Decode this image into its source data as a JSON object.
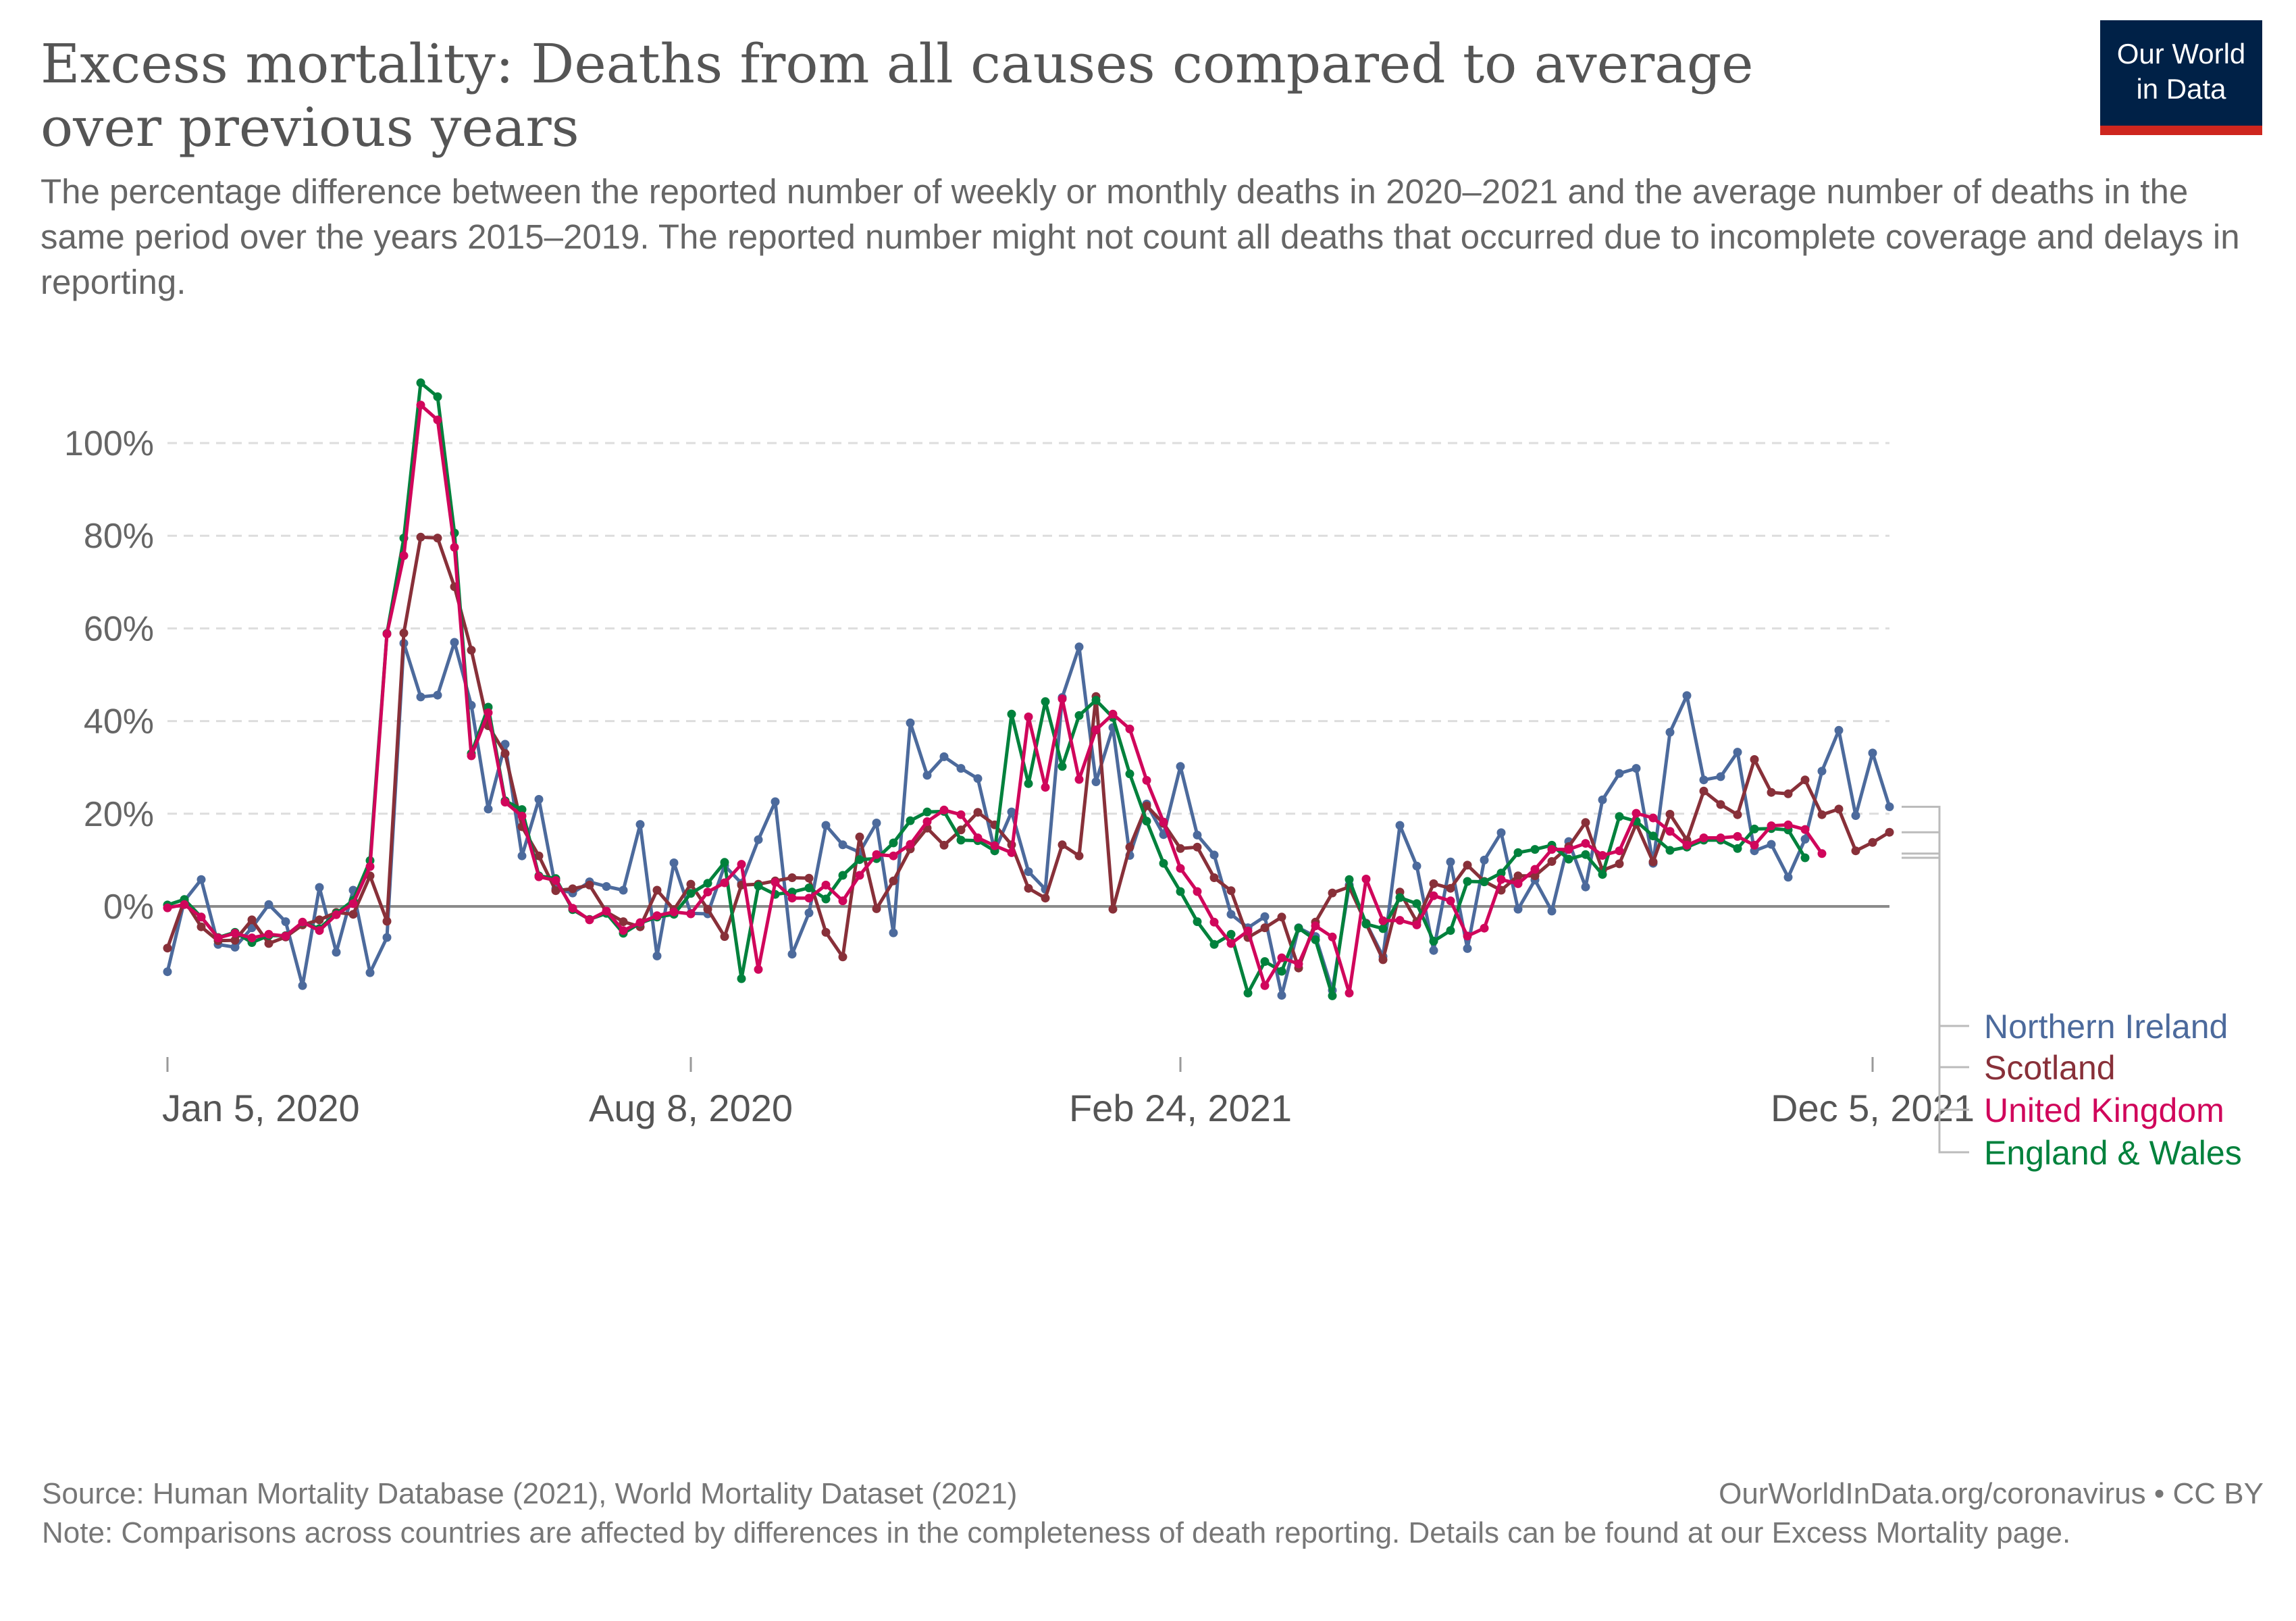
{
  "title": "Excess mortality: Deaths from all causes compared to average over previous years",
  "subtitle": "The percentage difference between the reported number of weekly or monthly deaths in 2020–2021 and the average number of deaths in the same period over the years 2015–2019. The reported number might not count all deaths that occurred due to incomplete coverage and delays in reporting.",
  "logo": {
    "line1": "Our World",
    "line2": "in Data",
    "bg_color": "#002147",
    "accent_color": "#ce261e"
  },
  "footer": {
    "source": "Source: Human Mortality Database (2021), World Mortality Dataset (2021)",
    "license": "OurWorldInData.org/coronavirus • CC BY",
    "note": "Note: Comparisons across countries are affected by differences in the completeness of death reporting. Details can be found at our Excess Mortality page."
  },
  "chart_data": {
    "type": "line",
    "title": "Excess mortality: Deaths from all causes compared to average over previous years",
    "xlabel": "",
    "ylabel": "",
    "x_start": "Jan 5, 2020",
    "x_interval": "weekly",
    "ylim": [
      -20,
      110
    ],
    "y_ticks": [
      0,
      20,
      40,
      60,
      80,
      100
    ],
    "y_tick_labels": [
      "0%",
      "20%",
      "40%",
      "60%",
      "80%",
      "100%"
    ],
    "x_ticks": [
      {
        "index": 0,
        "label": "Jan 5, 2020"
      },
      {
        "index": 31,
        "label": "Aug 8, 2020"
      },
      {
        "index": 60,
        "label": "Feb 24, 2021"
      },
      {
        "index": 101,
        "label": "Dec 5, 2021"
      }
    ],
    "grid": true,
    "legend": "right, labels at line ends",
    "series": [
      {
        "name": "Northern Ireland",
        "color": "#4c6a9c",
        "values": [
          -14.1,
          1.2,
          5.8,
          -8.2,
          -8.8,
          -4.6,
          0.4,
          -3.3,
          -17.1,
          4.1,
          -9.9,
          3.5,
          -14.3,
          -6.7,
          56.8,
          45.2,
          45.6,
          57,
          43.4,
          21,
          35,
          10.9,
          23.1,
          3.8,
          2.9,
          5.3,
          4.3,
          3.5,
          17.7,
          -10.7,
          9.4,
          -1.5,
          -1.6,
          8.8,
          5,
          14.4,
          22.6,
          -10.3,
          -1.4,
          17.5,
          13.3,
          11.7,
          18,
          -5.7,
          39.6,
          28.3,
          32.3,
          29.8,
          27.6,
          12,
          20.4,
          7.5,
          3.7,
          45.1,
          56,
          26.9,
          38.6,
          11,
          22.1,
          15.5,
          30.2,
          15.4,
          11.1,
          -1.7,
          -4.6,
          -2.2,
          -19.2,
          -4.6,
          -6.5,
          -18.1,
          4.6,
          -3.6,
          -10.8,
          17.5,
          8.7,
          -9.5,
          9.6,
          -9.1,
          10,
          15.9,
          -0.6,
          5.7,
          -1,
          14,
          4.2,
          23,
          28.7,
          29.8,
          9.3,
          37.6,
          45.5,
          27.3,
          28,
          33.3,
          12,
          13.4,
          6.3,
          14.5,
          29.2,
          38,
          19.6,
          33.1,
          21.5
        ]
      },
      {
        "name": "Scotland",
        "color": "#883039",
        "values": [
          -9,
          1.3,
          -4.4,
          -7.4,
          -7.3,
          -2.9,
          -8,
          -6.6,
          -4,
          -2.9,
          -1.3,
          -1.7,
          6.6,
          -3.2,
          59,
          79.7,
          79.5,
          69,
          55.3,
          39,
          33,
          17.2,
          10.9,
          3.4,
          3.8,
          4.6,
          -1.2,
          -3.3,
          -4.4,
          3.5,
          -0.7,
          4.8,
          -0.6,
          -6.5,
          4.6,
          4.8,
          5.5,
          6.2,
          6.1,
          -5.6,
          -10.9,
          15,
          -0.5,
          5.5,
          12.4,
          16.9,
          13.2,
          16.5,
          20.3,
          17.6,
          13.3,
          3.9,
          1.8,
          13.3,
          10.9,
          45.3,
          -0.6,
          12.8,
          21.7,
          17.9,
          12.5,
          12.8,
          6.2,
          3.4,
          -6.7,
          -4.6,
          -2.3,
          -13.3,
          -3.4,
          2.9,
          4.2,
          -3.7,
          -11.5,
          3.1,
          -3.3,
          4.9,
          3.9,
          8.9,
          5.4,
          3.5,
          6.6,
          6.6,
          9.7,
          12.9,
          18.1,
          7.8,
          9.2,
          17.8,
          9.6,
          19.9,
          14.3,
          24.9,
          22,
          19.8,
          31.7,
          24.6,
          24.3,
          27.3,
          19.8,
          21,
          12,
          13.8,
          16
        ]
      },
      {
        "name": "United Kingdom",
        "color": "#d0065b",
        "values": [
          -0.3,
          0.4,
          -2.3,
          -6.8,
          -5.8,
          -6.8,
          -6,
          -6.4,
          -3.4,
          -5.2,
          -1.8,
          0.6,
          8.6,
          58.8,
          75.7,
          108.2,
          105,
          77.5,
          32.5,
          41.8,
          22.5,
          19.5,
          6.4,
          5.6,
          -0.4,
          -2.9,
          -1,
          -5.2,
          -3.5,
          -2,
          -1.2,
          -1.6,
          3.1,
          5.1,
          9.1,
          -13.6,
          5.2,
          1.8,
          1.8,
          4.6,
          1.2,
          6.7,
          11.2,
          10.9,
          13.4,
          18.3,
          20.8,
          19.8,
          14.8,
          13.1,
          11.6,
          40.9,
          25.7,
          44.8,
          27.4,
          38.1,
          41.5,
          38.3,
          27.2,
          18.2,
          8.2,
          3.2,
          -3.4,
          -8,
          -5.3,
          -17.1,
          -11.1,
          -12.4,
          -4.2,
          -6.6,
          -18.7,
          5.9,
          -3.1,
          -3,
          -4,
          2.3,
          1.2,
          -6.4,
          -4.7,
          5.8,
          4.9,
          8,
          12.3,
          12.3,
          13.6,
          11,
          12,
          20.1,
          19.1,
          16.2,
          13.2,
          14.8,
          14.8,
          15.1,
          13.2,
          17.4,
          17.6,
          16.6,
          11.4
        ]
      },
      {
        "name": "England & Wales",
        "color": "#00813c",
        "values": [
          0.3,
          1.5,
          -2.3,
          -6.7,
          -5.6,
          -7.8,
          -6.3,
          -6.3,
          -3.5,
          -4.8,
          -1.5,
          1.3,
          9.9,
          58.9,
          79.5,
          113,
          110,
          80.6,
          33,
          43,
          22.8,
          20.9,
          6.6,
          6,
          -0.7,
          -2.8,
          -1.5,
          -5.8,
          -3.6,
          -2.3,
          -1.7,
          2.8,
          5,
          9.5,
          -15.6,
          4.4,
          2.6,
          3.1,
          4,
          1.6,
          6.7,
          10.1,
          10.3,
          13.7,
          18.5,
          20.4,
          20.5,
          14.3,
          14.2,
          12,
          41.5,
          26.5,
          44.2,
          30.2,
          41.2,
          44.5,
          40.8,
          28.6,
          18.4,
          9.3,
          3.2,
          -3.3,
          -8.2,
          -6,
          -18.7,
          -11.9,
          -14,
          -4.7,
          -7.2,
          -19.3,
          5.8,
          -3.8,
          -4.8,
          1.9,
          0.6,
          -7.5,
          -5.2,
          5.4,
          5.3,
          7.2,
          11.6,
          12.3,
          13.2,
          10.2,
          11.2,
          6.9,
          19.4,
          18.4,
          15.2,
          12.1,
          12.8,
          14.3,
          14.3,
          12.5,
          16.7,
          16.8,
          16.5,
          10.5
        ]
      }
    ]
  }
}
